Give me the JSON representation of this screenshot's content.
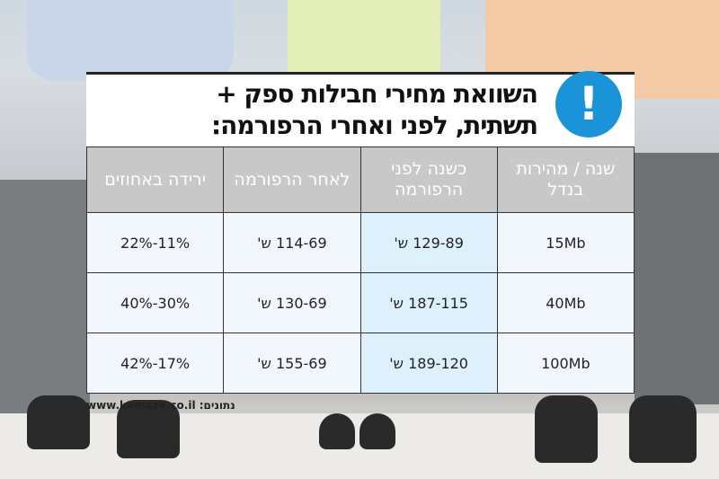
{
  "title": {
    "line1": "השוואת מחירי חבילות ספק +",
    "line2": "תשתית, לפני ואחרי הרפורמה:"
  },
  "icon": "exclamation-icon",
  "accent_color": "#1a93d8",
  "table": {
    "headers": [
      "שנה / מהירות בנדל",
      "כשנה לפני הרפורמה",
      "לאחר הרפורמה",
      "ירידה באחוזים"
    ],
    "rows": [
      [
        "15Mb",
        "129-89 ש'",
        "114-69 ש'",
        "22%-11%"
      ],
      [
        "40Mb",
        "187-115 ש'",
        "130-69 ש'",
        "40%-30%"
      ],
      [
        "100Mb",
        "189-120 ש'",
        "155-69 ש'",
        "42%-17%"
      ]
    ]
  },
  "source": {
    "label": "נתונים:",
    "url": "www.kamaze.co.il"
  }
}
